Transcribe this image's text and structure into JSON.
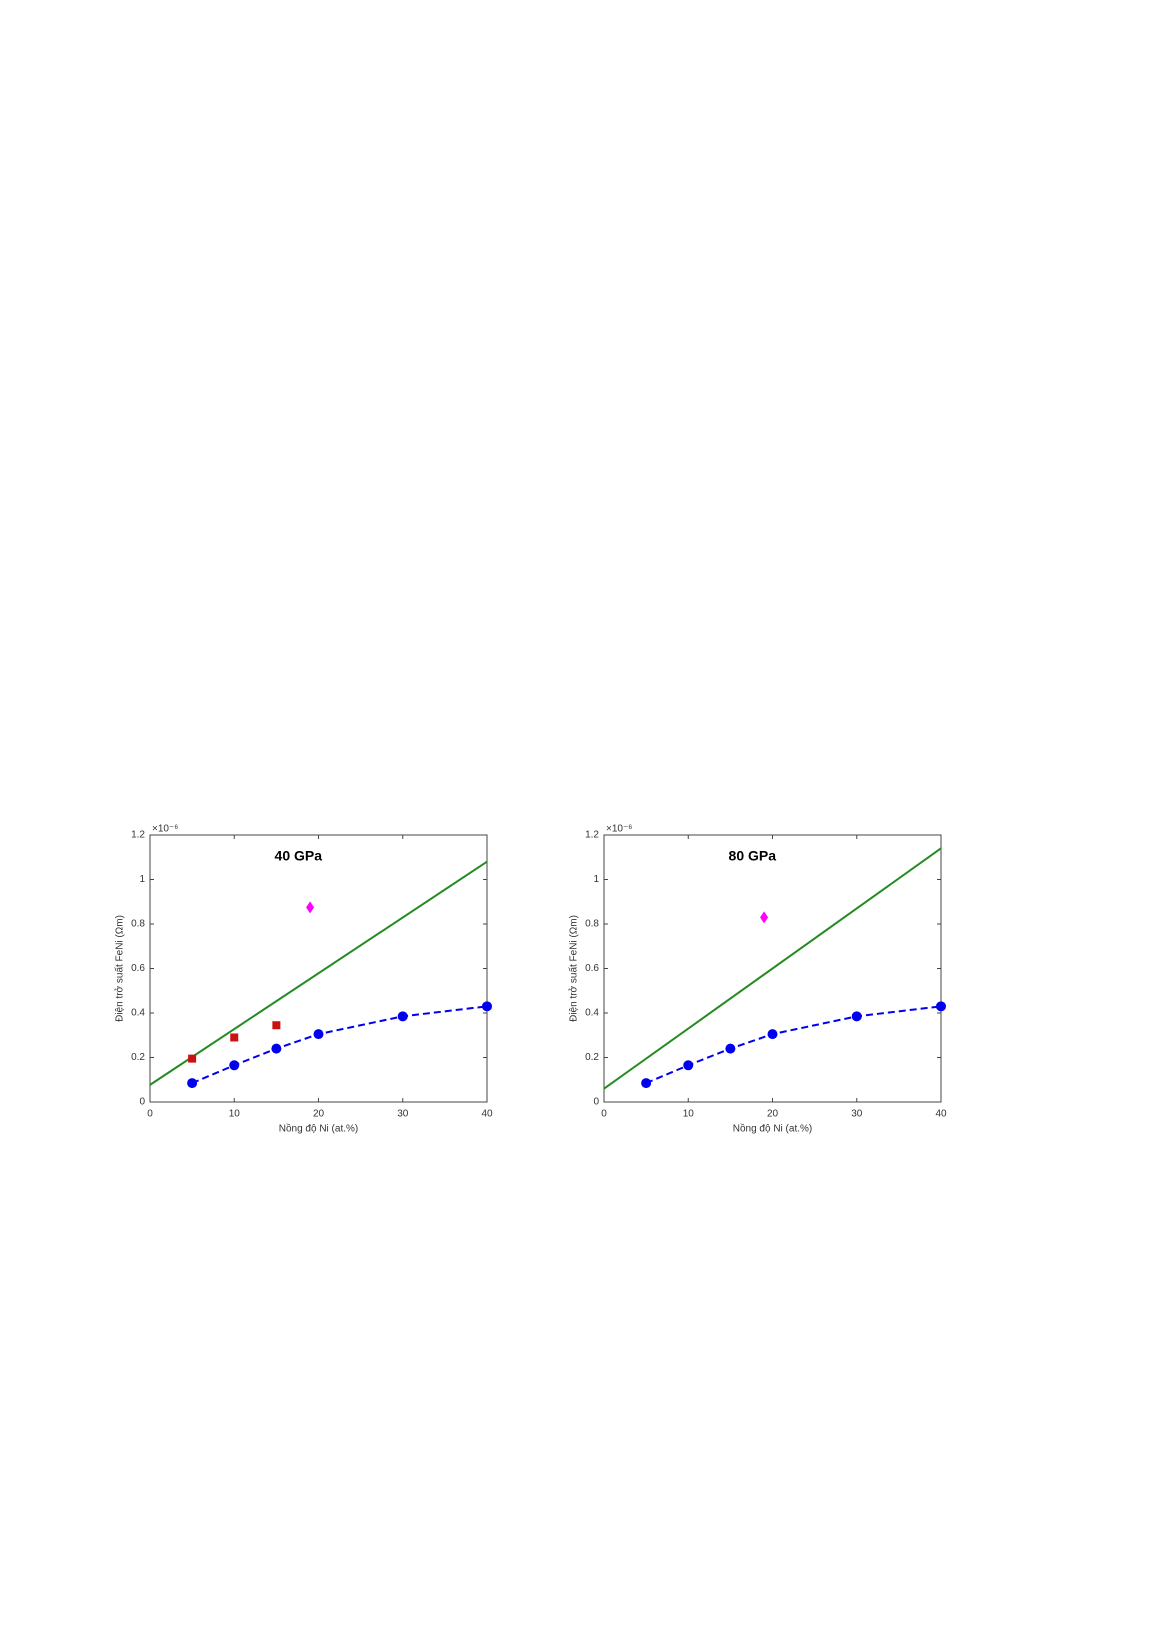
{
  "chart_data": [
    {
      "type": "line",
      "title": "40 GPa",
      "x_label": "Nồng độ Ni (at.%)",
      "y_label": "Điện trở suất FeNi (Ωm)",
      "y_multiplier": "×10⁻⁶",
      "xlim": [
        0,
        40
      ],
      "xticks": [
        0,
        10,
        20,
        30,
        40
      ],
      "ylim": [
        0,
        1.2
      ],
      "yticks": [
        0,
        0.2,
        0.4,
        0.6,
        0.8,
        1,
        1.2
      ],
      "series": [
        {
          "color": "#228b22",
          "marker": "none",
          "dashed": false,
          "x": [
            0,
            40
          ],
          "values": [
            0.077,
            1.08
          ]
        },
        {
          "color": "#0000ee",
          "marker": "circle",
          "dashed": true,
          "x": [
            5,
            10,
            15,
            20,
            30,
            40
          ],
          "values": [
            0.085,
            0.165,
            0.24,
            0.305,
            0.385,
            0.43
          ]
        },
        {
          "color": "#cc1111",
          "marker": "square",
          "dashed": null,
          "x": [
            5,
            10,
            15
          ],
          "values": [
            0.195,
            0.29,
            0.345
          ]
        },
        {
          "color": "#ff00ff",
          "marker": "diamond",
          "dashed": null,
          "x": [
            19
          ],
          "values": [
            0.875
          ]
        }
      ]
    },
    {
      "type": "line",
      "title": "80 GPa",
      "x_label": "Nồng độ Ni (at.%)",
      "y_label": "Điện trở suất FeNi (Ωm)",
      "y_multiplier": "×10⁻⁶",
      "xlim": [
        0,
        40
      ],
      "xticks": [
        0,
        10,
        20,
        30,
        40
      ],
      "ylim": [
        0,
        1.2
      ],
      "yticks": [
        0,
        0.2,
        0.4,
        0.6,
        0.8,
        1,
        1.2
      ],
      "series": [
        {
          "color": "#228b22",
          "marker": "none",
          "dashed": false,
          "x": [
            0,
            40
          ],
          "values": [
            0.06,
            1.14
          ]
        },
        {
          "color": "#0000ee",
          "marker": "circle",
          "dashed": true,
          "x": [
            5,
            10,
            15,
            20,
            30,
            40
          ],
          "values": [
            0.085,
            0.165,
            0.24,
            0.305,
            0.385,
            0.43
          ]
        },
        {
          "color": "#ff00ff",
          "marker": "diamond",
          "dashed": null,
          "x": [
            19
          ],
          "values": [
            0.83
          ]
        }
      ]
    }
  ]
}
